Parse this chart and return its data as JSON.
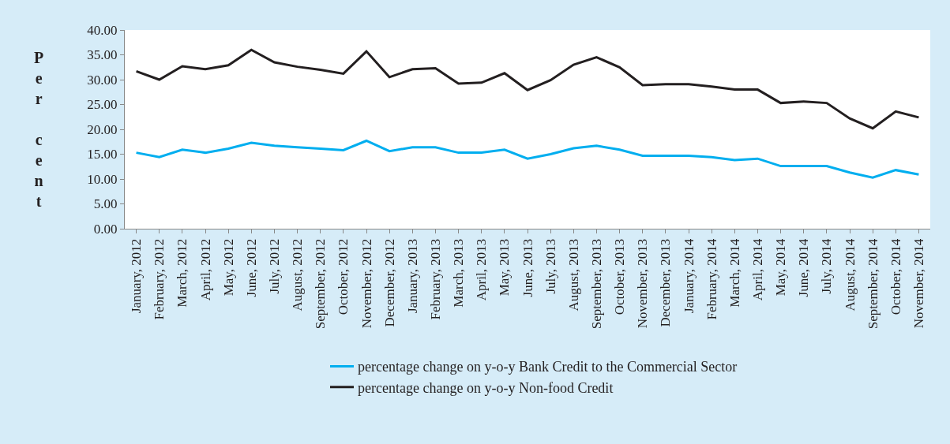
{
  "chart_data": {
    "type": "line",
    "ylabel": "Per cent",
    "categories": [
      "January, 2012",
      "February, 2012",
      "March, 2012",
      "April, 2012",
      "May, 2012",
      "June, 2012",
      "July, 2012",
      "August, 2012",
      "September, 2012",
      "October, 2012",
      "November, 2012",
      "December, 2012",
      "January, 2013",
      "February, 2013",
      "March, 2013",
      "April, 2013",
      "May, 2013",
      "June, 2013",
      "July, 2013",
      "August, 2013",
      "September, 2013",
      "October, 2013",
      "November, 2013",
      "December, 2013",
      "January, 2014",
      "February, 2014",
      "March, 2014",
      "April, 2014",
      "May, 2014",
      "June, 2014",
      "July, 2014",
      "August, 2014",
      "September, 2014",
      "October, 2014",
      "November, 2014"
    ],
    "series": [
      {
        "name": "percentage change on y-o-y Bank Credit to the Commercial Sector",
        "color": "#00aeef",
        "values": [
          15.3,
          14.4,
          15.9,
          15.3,
          16.1,
          17.3,
          16.7,
          16.4,
          16.1,
          15.8,
          17.7,
          15.6,
          16.4,
          16.4,
          15.3,
          15.3,
          15.9,
          14.1,
          15.0,
          16.2,
          16.7,
          15.9,
          14.7,
          14.7,
          14.7,
          14.4,
          13.8,
          14.1,
          12.6,
          12.6,
          12.6,
          11.3,
          10.3,
          11.8,
          10.9
        ]
      },
      {
        "name": "percentage change on y-o-y Non-food Credit",
        "color": "#231f20",
        "values": [
          31.7,
          30.0,
          32.7,
          32.1,
          32.9,
          36.0,
          33.5,
          32.6,
          32.0,
          31.2,
          35.7,
          30.5,
          32.1,
          32.3,
          29.2,
          29.4,
          31.3,
          27.9,
          29.9,
          33.0,
          34.5,
          32.5,
          28.9,
          29.1,
          29.1,
          28.6,
          28.0,
          28.0,
          25.3,
          25.6,
          25.3,
          22.2,
          20.2,
          23.6,
          22.4
        ]
      }
    ],
    "ylim": [
      0,
      40
    ],
    "yticks": [
      {
        "value": 0,
        "label": "0.00"
      },
      {
        "value": 5,
        "label": "5.00"
      },
      {
        "value": 10,
        "label": "10.00"
      },
      {
        "value": 15,
        "label": "15.00"
      },
      {
        "value": 20,
        "label": "20.00"
      },
      {
        "value": 25,
        "label": "25.00"
      },
      {
        "value": 30,
        "label": "30.00"
      },
      {
        "value": 35,
        "label": "35.00"
      },
      {
        "value": 40,
        "label": "40.00"
      }
    ],
    "legend": "bottom",
    "marker": "none",
    "line_style": "solid"
  }
}
